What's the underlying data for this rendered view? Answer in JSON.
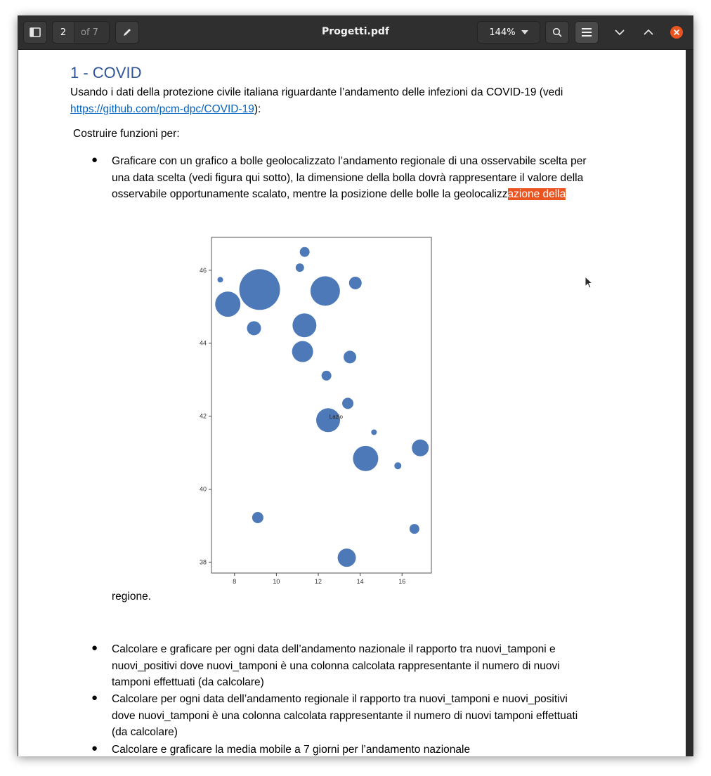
{
  "header": {
    "page_current": "2",
    "page_total": "of 7",
    "title": "Progetti.pdf",
    "zoom": "144%"
  },
  "colors": {
    "highlight": "#e95420",
    "bubble": "#4472b4",
    "heading": "#2f5597",
    "link": "#0563c1"
  },
  "document": {
    "heading": "1 - COVID",
    "intro": "Usando i dati della protezione civile italiana riguardante l’andamento delle infezioni da COVID-19 (vedi",
    "link": "https://github.com/pcm-dpc/COVID-19",
    "link_suffix": "):",
    "subheading": "Costruire funzioni per:",
    "bullet1_line1": "Graficare con un grafico a bolle geolocalizzato l’andamento regionale di una osservabile scelta per",
    "bullet1_line2": "una data scelta (vedi figura qui sotto), la dimensione della bolla dovrà rappresentare il valore della",
    "bullet1_line3_plain": "osservabile opportunamente scalato, mentre la posizione delle bolle la geolocalizz",
    "bullet1_line3_highlight": "azione della",
    "bullet1_cont": "regione.",
    "bullet2_line1": "Calcolare e graficare per ogni data dell’andamento nazionale il rapporto tra nuovi_tamponi e",
    "bullet2_line2": "nuovi_positivi dove nuovi_tamponi è una colonna calcolata rappresentante il numero di nuovi",
    "bullet2_line3": "tamponi effettuati (da calcolare)",
    "bullet3_line1": "Calcolare per ogni data dell’andamento regionale il rapporto tra nuovi_tamponi e nuovi_positivi",
    "bullet3_line2": "dove nuovi_tamponi è una colonna calcolata rappresentante il numero di nuovi tamponi effettuati",
    "bullet3_line3": "(da calcolare)",
    "bullet4_line1": "Calcolare e graficare la media mobile a 7 giorni per l’andamento nazionale"
  },
  "chart_data": {
    "type": "scatter",
    "xlim": [
      6.9,
      17.4
    ],
    "ylim": [
      37.7,
      46.9
    ],
    "xticks": [
      8,
      10,
      12,
      14,
      16
    ],
    "yticks": [
      38,
      40,
      42,
      44,
      46
    ],
    "annotation": {
      "text": "Lazio",
      "x": 12.85,
      "y": 41.93
    },
    "grid": false,
    "points": [
      {
        "x": 11.35,
        "y": 46.5,
        "r": 7
      },
      {
        "x": 7.32,
        "y": 45.74,
        "r": 4
      },
      {
        "x": 11.12,
        "y": 46.07,
        "r": 6
      },
      {
        "x": 9.2,
        "y": 45.47,
        "r": 29
      },
      {
        "x": 12.33,
        "y": 45.43,
        "r": 21
      },
      {
        "x": 13.77,
        "y": 45.65,
        "r": 9
      },
      {
        "x": 7.68,
        "y": 45.07,
        "r": 18
      },
      {
        "x": 8.93,
        "y": 44.41,
        "r": 10
      },
      {
        "x": 11.34,
        "y": 44.49,
        "r": 17
      },
      {
        "x": 11.25,
        "y": 43.77,
        "r": 15
      },
      {
        "x": 13.51,
        "y": 43.62,
        "r": 9
      },
      {
        "x": 12.39,
        "y": 43.11,
        "r": 7
      },
      {
        "x": 13.41,
        "y": 42.35,
        "r": 8
      },
      {
        "x": 12.47,
        "y": 41.89,
        "r": 17
      },
      {
        "x": 14.66,
        "y": 41.56,
        "r": 4
      },
      {
        "x": 14.26,
        "y": 40.84,
        "r": 18
      },
      {
        "x": 16.87,
        "y": 41.13,
        "r": 12
      },
      {
        "x": 15.8,
        "y": 40.64,
        "r": 5
      },
      {
        "x": 9.11,
        "y": 39.22,
        "r": 8
      },
      {
        "x": 16.59,
        "y": 38.91,
        "r": 7
      },
      {
        "x": 13.36,
        "y": 38.12,
        "r": 13
      }
    ]
  }
}
